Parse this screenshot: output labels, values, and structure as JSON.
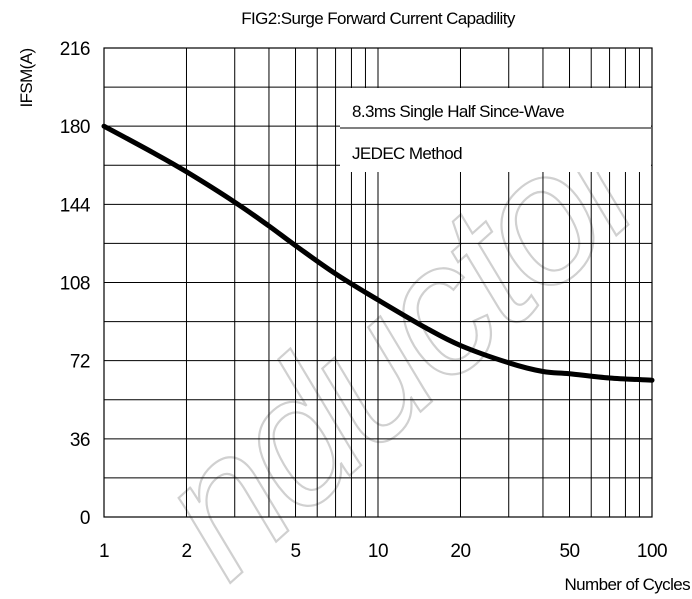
{
  "chart_data": {
    "type": "line",
    "title": "FIG2:Surge Forward Current Capadility",
    "xlabel": "Number of Cycles",
    "ylabel": "IFSM(A)",
    "x_scale": "log",
    "xlim": [
      1,
      100
    ],
    "ylim": [
      0,
      216
    ],
    "x_ticks": [
      1,
      2,
      5,
      10,
      20,
      50,
      100
    ],
    "y_ticks": [
      0,
      36,
      72,
      108,
      144,
      180,
      216
    ],
    "grid": true,
    "annotations": [
      "8.3ms Single Half Since-Wave",
      "JEDEC Method"
    ],
    "series": [
      {
        "x": [
          1,
          1.5,
          2,
          3,
          4,
          5,
          7,
          10,
          15,
          20,
          30,
          40,
          50,
          70,
          100
        ],
        "y": [
          180,
          168,
          159,
          145,
          134,
          125,
          112,
          100,
          87,
          79,
          71,
          67,
          66,
          64,
          63
        ]
      }
    ]
  },
  "watermark": "nductor",
  "colors": {
    "line": "#000000",
    "watermark": "#d0d0d0"
  }
}
